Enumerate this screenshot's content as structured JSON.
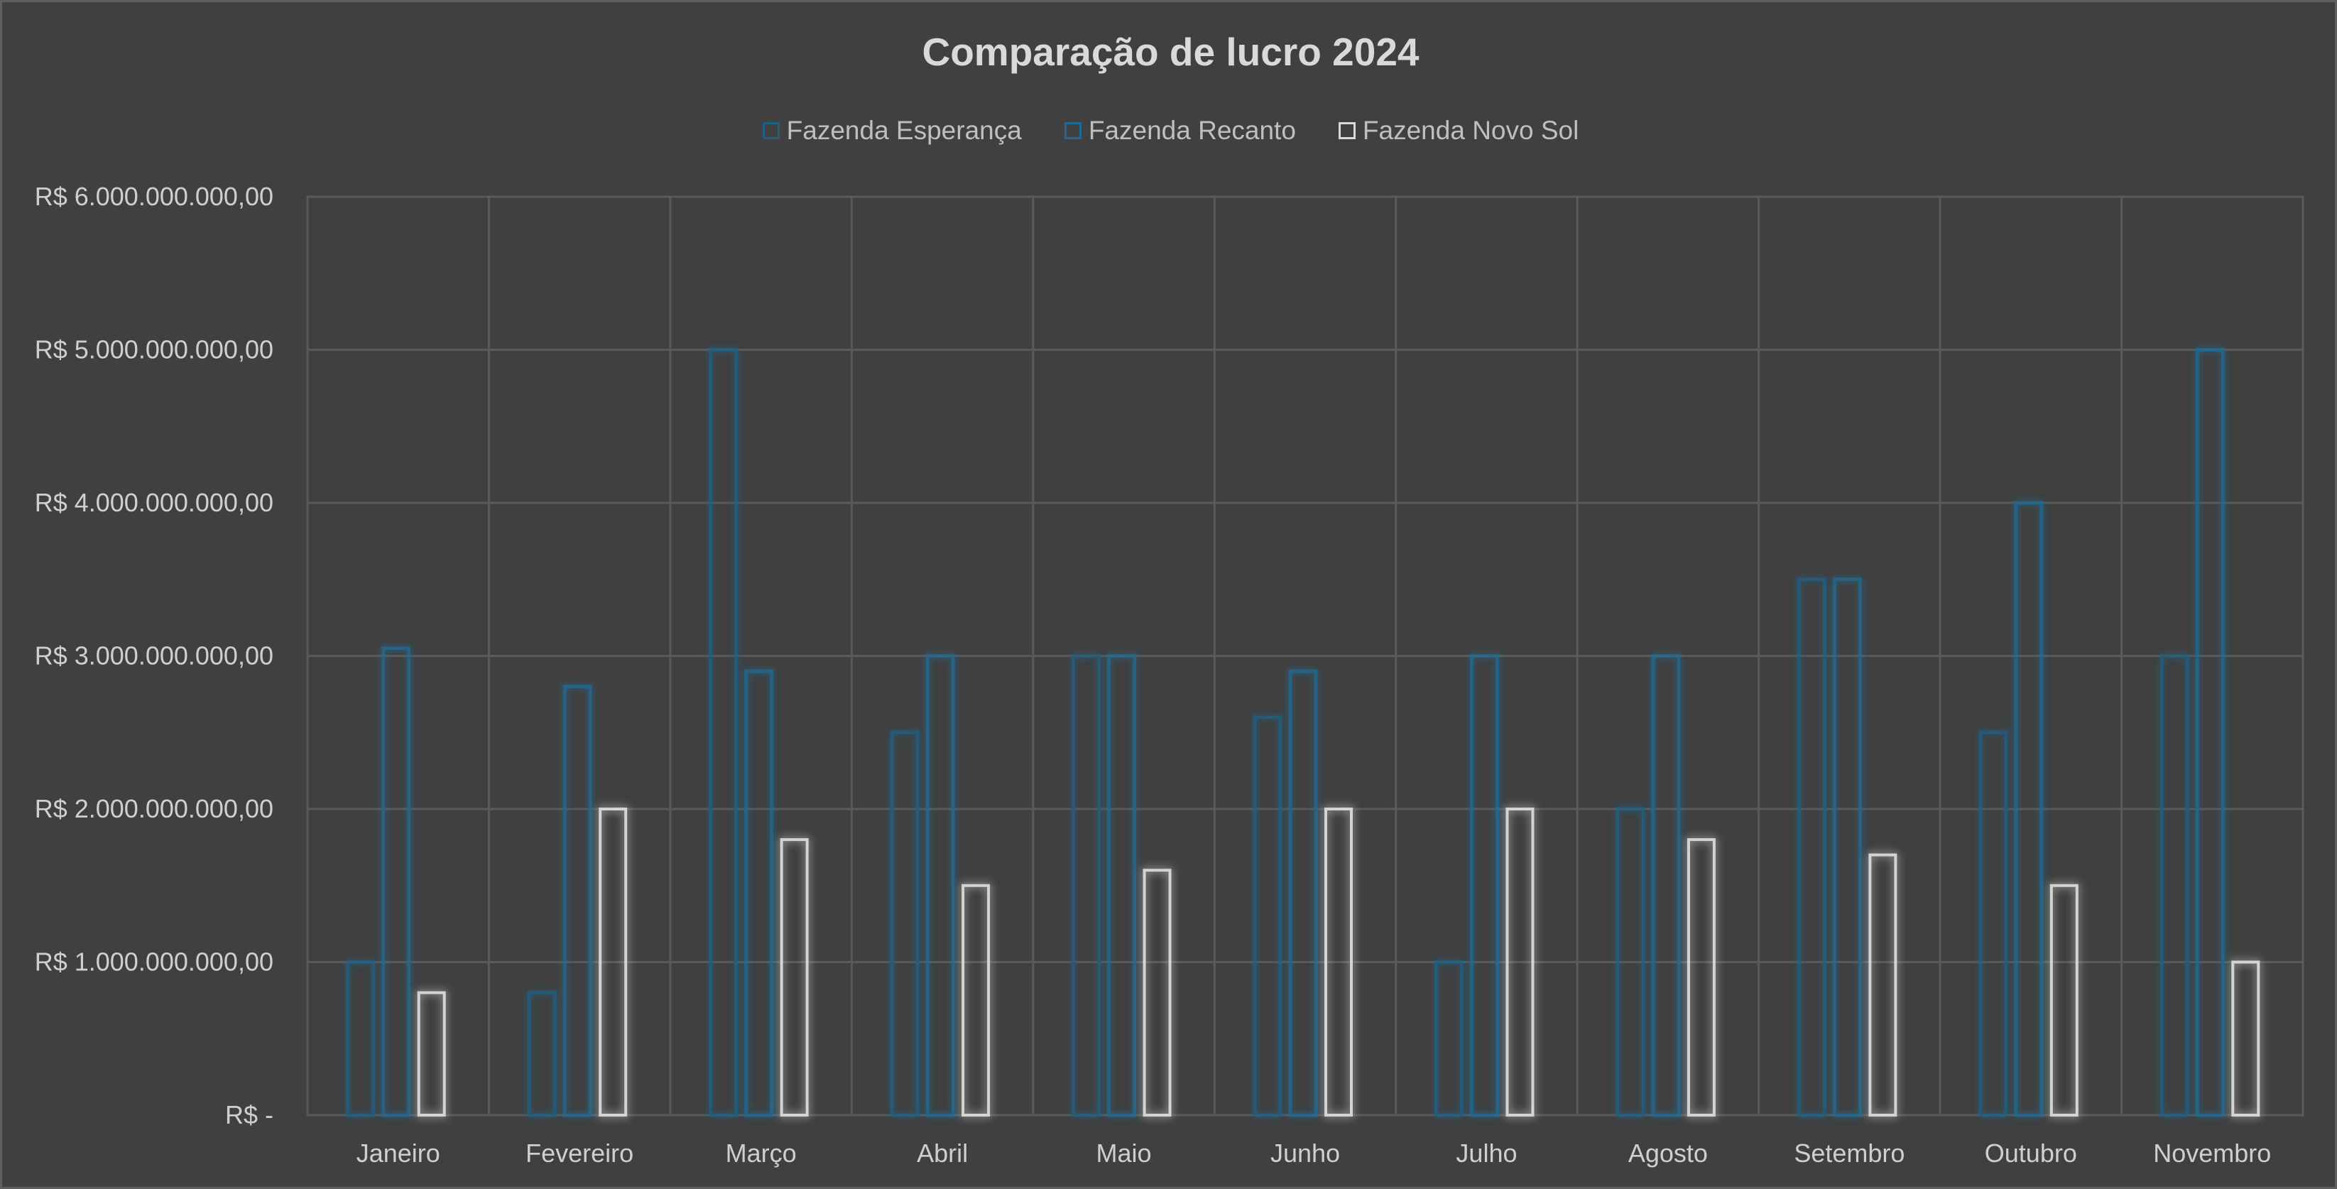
{
  "chart_data": {
    "type": "bar",
    "title": "Comparação de lucro 2024",
    "categories": [
      "Janeiro",
      "Fevereiro",
      "Março",
      "Abril",
      "Maio",
      "Junho",
      "Julho",
      "Agosto",
      "Setembro",
      "Outubro",
      "Novembro"
    ],
    "series": [
      {
        "name": "Fazenda Esperança",
        "color": "#1f5f82",
        "values": [
          1000000000,
          800000000,
          5000000000,
          2500000000,
          3000000000,
          2600000000,
          1000000000,
          2000000000,
          3500000000,
          2500000000,
          3000000000
        ]
      },
      {
        "name": "Fazenda Recanto",
        "color": "#1f6a92",
        "values": [
          3050000000,
          2800000000,
          2900000000,
          3000000000,
          3000000000,
          2900000000,
          3000000000,
          3000000000,
          3500000000,
          4000000000,
          5000000000
        ]
      },
      {
        "name": "Fazenda Novo Sol",
        "color": "#d9d9d9",
        "values": [
          800000000,
          2000000000,
          1800000000,
          1500000000,
          1600000000,
          2000000000,
          2000000000,
          1800000000,
          1700000000,
          1500000000,
          1000000000
        ]
      }
    ],
    "ylim": [
      0,
      6000000000
    ],
    "y_ticks": [
      {
        "value": 0,
        "label": "R$ -"
      },
      {
        "value": 1000000000,
        "label": "R$ 1.000.000.000,00"
      },
      {
        "value": 2000000000,
        "label": "R$ 2.000.000.000,00"
      },
      {
        "value": 3000000000,
        "label": "R$ 3.000.000.000,00"
      },
      {
        "value": 4000000000,
        "label": "R$ 4.000.000.000,00"
      },
      {
        "value": 5000000000,
        "label": "R$ 5.000.000.000,00"
      },
      {
        "value": 6000000000,
        "label": "R$ 6.000.000.000,00"
      }
    ],
    "xlabel": "",
    "ylabel": "",
    "grid": true,
    "legend_position": "top",
    "background_color": "#404040",
    "gridline_color": "#5a5a5a"
  }
}
